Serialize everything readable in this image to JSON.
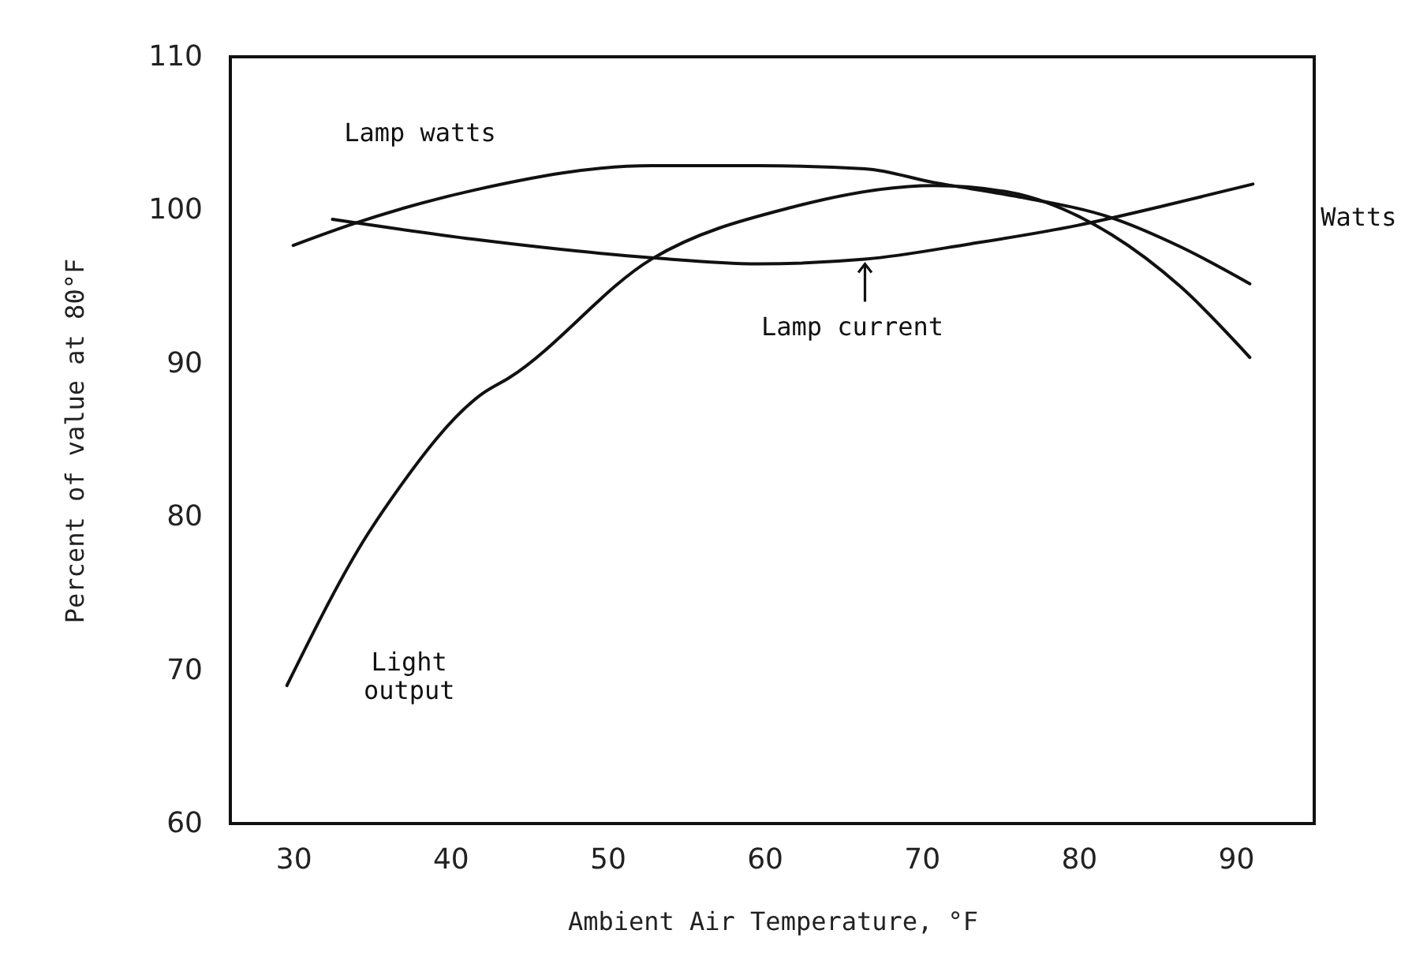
{
  "chart_data": {
    "type": "line",
    "xlabel": "Ambient Air Temperature, °F",
    "ylabel": "Percent of value at 80°F",
    "xlim": [
      26,
      95
    ],
    "ylim": [
      60,
      110
    ],
    "xticks": [
      30,
      40,
      50,
      60,
      70,
      80,
      90
    ],
    "yticks": [
      60,
      70,
      80,
      90,
      100,
      110
    ],
    "grid": false,
    "marker": "none",
    "line_style": "solid",
    "series": [
      {
        "color": "#111111",
        "x": [
          30,
          33.8,
          41.5,
          52.8,
          59.6,
          66.4,
          70.8,
          76,
          82.1,
          86.5,
          90.9
        ],
        "values": [
          97.7,
          99.1,
          101.3,
          102.9,
          102.9,
          102.7,
          101.8,
          100.9,
          99.5,
          97.6,
          95.2
        ]
      },
      {
        "color": "#111111",
        "x": [
          32.5,
          41.5,
          52.8,
          59.6,
          66.4,
          73.1,
          79.9,
          85.5,
          91.1
        ],
        "values": [
          99.4,
          98.1,
          96.9,
          96.5,
          96.8,
          97.8,
          99.0,
          100.3,
          101.7
        ]
      },
      {
        "color": "#111111",
        "x": [
          29.6,
          34.7,
          36.2,
          42,
          43.8,
          52.8,
          61.8,
          70.8,
          75.4,
          82.1,
          86.5,
          90.9
        ],
        "values": [
          69.0,
          78.8,
          81.1,
          88.0,
          89.1,
          96.8,
          100.2,
          101.6,
          101.2,
          98.4,
          95.0,
          90.4
        ]
      }
    ],
    "annotations": [
      "Lamp watts",
      {
        "text": "Lamp current",
        "x": 66.4,
        "y": 96.8
      },
      "Light\noutput",
      "Watts"
    ]
  }
}
